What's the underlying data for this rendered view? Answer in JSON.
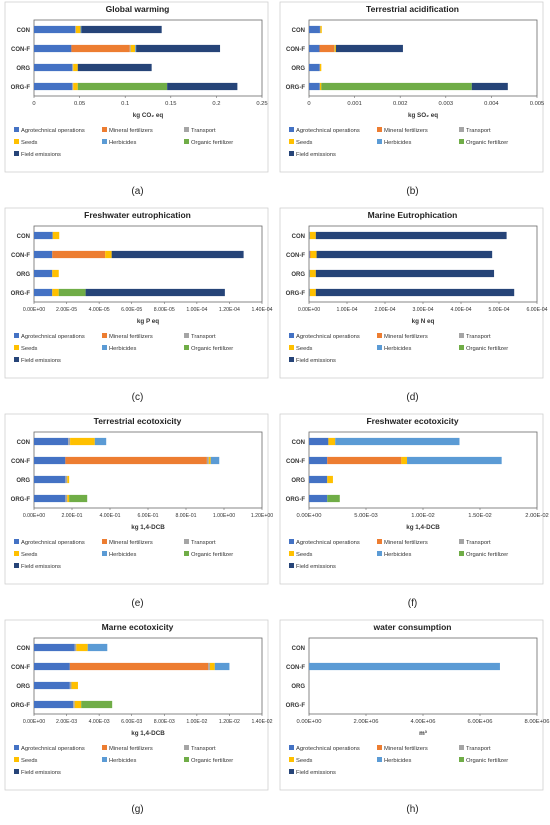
{
  "legend_labels": {
    "agro": "Agrotechnical operations",
    "min": "Mineral fertilizers",
    "trans": "Transport",
    "seeds": "Seeds",
    "herb": "Herbicides",
    "org": "Organic fertilizer",
    "field": "Field emissions"
  },
  "colors": {
    "agro": "#4472C4",
    "min": "#ED7D31",
    "trans": "#A5A5A5",
    "seeds": "#FFC000",
    "herb": "#5B9BD5",
    "org": "#70AD47",
    "field": "#264478"
  },
  "chart_data": [
    {
      "type": "bar",
      "orientation": "horizontal",
      "stacked": true,
      "panel_label": "(a)",
      "title": "Global warming",
      "xlabel": "kg CO₂ eq",
      "categories": [
        "CON",
        "CON-F",
        "ORG",
        "ORG-F"
      ],
      "xlim": [
        0,
        0.25
      ],
      "ticks": [
        "0",
        "0.05",
        "0.1",
        "0.15",
        "0.2",
        "0.25"
      ],
      "series": [
        {
          "key": "agro",
          "name": "Agrotechnical operations",
          "values": [
            0.045,
            0.041,
            0.042,
            0.042
          ]
        },
        {
          "key": "min",
          "name": "Mineral fertilizers",
          "values": [
            0,
            0.064,
            0,
            0
          ]
        },
        {
          "key": "trans",
          "name": "Transport",
          "values": [
            0.001,
            0.001,
            0.001,
            0.001
          ]
        },
        {
          "key": "seeds",
          "name": "Seeds",
          "values": [
            0.005,
            0.005,
            0.005,
            0.005
          ]
        },
        {
          "key": "herb",
          "name": "Herbicides",
          "values": [
            0.001,
            0.001,
            0,
            0
          ]
        },
        {
          "key": "org",
          "name": "Organic fertilizer",
          "values": [
            0,
            0,
            0,
            0.098
          ]
        },
        {
          "key": "field",
          "name": "Field emissions",
          "values": [
            0.088,
            0.092,
            0.081,
            0.077
          ]
        }
      ]
    },
    {
      "type": "bar",
      "orientation": "horizontal",
      "stacked": true,
      "panel_label": "(b)",
      "title": "Terrestrial acidification",
      "xlabel": "kg SO₂ eq",
      "categories": [
        "CON",
        "CON-F",
        "ORG",
        "ORG-F"
      ],
      "xlim": [
        0,
        0.005
      ],
      "ticks": [
        "0",
        "0.001",
        "0.002",
        "0.003",
        "0.004",
        "0.005"
      ],
      "series": [
        {
          "key": "agro",
          "name": "Agrotechnical operations",
          "values": [
            0.00024,
            0.00023,
            0.00023,
            0.00023
          ]
        },
        {
          "key": "min",
          "name": "Mineral fertilizers",
          "values": [
            0,
            0.00032,
            0,
            0
          ]
        },
        {
          "key": "trans",
          "name": "Transport",
          "values": [
            1e-05,
            1e-05,
            1e-05,
            1e-05
          ]
        },
        {
          "key": "seeds",
          "name": "Seeds",
          "values": [
            3e-05,
            3e-05,
            3e-05,
            3e-05
          ]
        },
        {
          "key": "herb",
          "name": "Herbicides",
          "values": [
            0,
            0,
            0,
            0
          ]
        },
        {
          "key": "org",
          "name": "Organic fertilizer",
          "values": [
            0,
            0,
            0,
            0.0033
          ]
        },
        {
          "key": "field",
          "name": "Field emissions",
          "values": [
            0,
            0.00147,
            0,
            0.00079
          ]
        }
      ]
    },
    {
      "type": "bar",
      "orientation": "horizontal",
      "stacked": true,
      "panel_label": "(c)",
      "title": "Freshwater eutrophication",
      "xlabel": "kg P eq",
      "categories": [
        "CON",
        "CON-F",
        "ORG",
        "ORG-F"
      ],
      "xlim": [
        0,
        0.00014
      ],
      "ticks": [
        "0.00E+00",
        "2.00E-05",
        "4.00E-05",
        "6.00E-05",
        "8.00E-05",
        "1.00E-04",
        "1.20E-04",
        "1.40E-04"
      ],
      "series": [
        {
          "key": "agro",
          "name": "Agrotechnical operations",
          "values": [
            1.15e-05,
            1.12e-05,
            1.12e-05,
            1.12e-05
          ]
        },
        {
          "key": "min",
          "name": "Mineral fertilizers",
          "values": [
            0,
            3.25e-05,
            0,
            0
          ]
        },
        {
          "key": "trans",
          "name": "Transport",
          "values": [
            0,
            0,
            0,
            0
          ]
        },
        {
          "key": "seeds",
          "name": "Seeds",
          "values": [
            4e-06,
            4e-06,
            4e-06,
            4e-06
          ]
        },
        {
          "key": "herb",
          "name": "Herbicides",
          "values": [
            0,
            0,
            0,
            0
          ]
        },
        {
          "key": "org",
          "name": "Organic fertilizer",
          "values": [
            0,
            0,
            0,
            1.65e-05
          ]
        },
        {
          "key": "field",
          "name": "Field emissions",
          "values": [
            0,
            8.1e-05,
            0,
            8.55e-05
          ]
        }
      ]
    },
    {
      "type": "bar",
      "orientation": "horizontal",
      "stacked": true,
      "panel_label": "(d)",
      "title": "Marine Eutrophication",
      "xlabel": "kg N eq",
      "categories": [
        "CON",
        "CON-F",
        "ORG",
        "ORG-F"
      ],
      "xlim": [
        0,
        0.0006
      ],
      "ticks": [
        "0.00E+00",
        "1.00E-04",
        "2.00E-04",
        "3.00E-04",
        "4.00E-04",
        "5.00E-04",
        "6.00E-04"
      ],
      "series": [
        {
          "key": "agro",
          "name": "Agrotechnical operations",
          "values": [
            2e-06,
            2e-06,
            2e-06,
            2e-06
          ]
        },
        {
          "key": "min",
          "name": "Mineral fertilizers",
          "values": [
            0,
            2e-06,
            0,
            0
          ]
        },
        {
          "key": "trans",
          "name": "Transport",
          "values": [
            0,
            0,
            0,
            0
          ]
        },
        {
          "key": "seeds",
          "name": "Seeds",
          "values": [
            1.6e-05,
            1.6e-05,
            1.6e-05,
            1.6e-05
          ]
        },
        {
          "key": "herb",
          "name": "Herbicides",
          "values": [
            0,
            0,
            0,
            0
          ]
        },
        {
          "key": "org",
          "name": "Organic fertilizer",
          "values": [
            0,
            0,
            0,
            0
          ]
        },
        {
          "key": "field",
          "name": "Field emissions",
          "values": [
            0.000502,
            0.000462,
            0.000469,
            0.000522
          ]
        }
      ]
    },
    {
      "type": "bar",
      "orientation": "horizontal",
      "stacked": true,
      "panel_label": "(e)",
      "title": "Terrestrial ecotoxicity",
      "xlabel": "kg 1,4-DCB",
      "categories": [
        "CON",
        "CON-F",
        "ORG",
        "ORG-F"
      ],
      "xlim": [
        0,
        1.2
      ],
      "ticks": [
        "0.00E+00",
        "2.00E-01",
        "4.00E-01",
        "6.00E-01",
        "8.00E-01",
        "1.00E+00",
        "1.20E+00"
      ],
      "series": [
        {
          "key": "agro",
          "name": "Agrotechnical operations",
          "values": [
            0.18,
            0.165,
            0.165,
            0.165
          ]
        },
        {
          "key": "min",
          "name": "Mineral fertilizers",
          "values": [
            0,
            0.745,
            0,
            0
          ]
        },
        {
          "key": "trans",
          "name": "Transport",
          "values": [
            0.01,
            0.01,
            0.01,
            0.01
          ]
        },
        {
          "key": "seeds",
          "name": "Seeds",
          "values": [
            0.13,
            0.01,
            0.01,
            0.01
          ]
        },
        {
          "key": "herb",
          "name": "Herbicides",
          "values": [
            0.06,
            0.045,
            0,
            0
          ]
        },
        {
          "key": "org",
          "name": "Organic fertilizer",
          "values": [
            0,
            0,
            0,
            0.095
          ]
        },
        {
          "key": "field",
          "name": "Field emissions",
          "values": [
            0,
            0,
            0,
            0
          ]
        }
      ]
    },
    {
      "type": "bar",
      "orientation": "horizontal",
      "stacked": true,
      "panel_label": "(f)",
      "title": "Freshwater ecotoxicity",
      "xlabel": "kg 1,4-DCB",
      "categories": [
        "CON",
        "CON-F",
        "ORG",
        "ORG-F"
      ],
      "xlim": [
        0,
        0.02
      ],
      "ticks": [
        "0.00E+00",
        "5.00E-03",
        "1.00E-02",
        "1.50E-02",
        "2.00E-02"
      ],
      "series": [
        {
          "key": "agro",
          "name": "Agrotechnical operations",
          "values": [
            0.0017,
            0.0016,
            0.0016,
            0.0016
          ]
        },
        {
          "key": "min",
          "name": "Mineral fertilizers",
          "values": [
            0,
            0.0065,
            0,
            0
          ]
        },
        {
          "key": "trans",
          "name": "Transport",
          "values": [
            0,
            0,
            0,
            0
          ]
        },
        {
          "key": "seeds",
          "name": "Seeds",
          "values": [
            0.0006,
            0.0005,
            0.0005,
            0
          ]
        },
        {
          "key": "herb",
          "name": "Herbicides",
          "values": [
            0.0109,
            0.0083,
            0,
            0
          ]
        },
        {
          "key": "org",
          "name": "Organic fertilizer",
          "values": [
            0,
            0,
            0,
            0.0011
          ]
        },
        {
          "key": "field",
          "name": "Field emissions",
          "values": [
            0,
            0,
            0,
            0
          ]
        }
      ]
    },
    {
      "type": "bar",
      "orientation": "horizontal",
      "stacked": true,
      "panel_label": "(g)",
      "title": "Marne ecotoxicity",
      "xlabel": "kg 1,4-DCB",
      "categories": [
        "CON",
        "CON-F",
        "ORG",
        "ORG-F"
      ],
      "xlim": [
        0,
        0.014
      ],
      "ticks": [
        "0.00E+00",
        "2.00E-03",
        "4.00E-03",
        "6.00E-03",
        "8.00E-03",
        "1.00E-02",
        "1.20E-02",
        "1.40E-02"
      ],
      "series": [
        {
          "key": "agro",
          "name": "Agrotechnical operations",
          "values": [
            0.0025,
            0.0022,
            0.0022,
            0.0024
          ]
        },
        {
          "key": "min",
          "name": "Mineral fertilizers",
          "values": [
            0,
            0.0085,
            0,
            0
          ]
        },
        {
          "key": "trans",
          "name": "Transport",
          "values": [
            0.0001,
            0.0001,
            0.0001,
            0.0001
          ]
        },
        {
          "key": "seeds",
          "name": "Seeds",
          "values": [
            0.0007,
            0.0003,
            0.0004,
            0.0004
          ]
        },
        {
          "key": "herb",
          "name": "Herbicides",
          "values": [
            0.0012,
            0.0009,
            0,
            0
          ]
        },
        {
          "key": "org",
          "name": "Organic fertilizer",
          "values": [
            0,
            0,
            0,
            0.0019
          ]
        },
        {
          "key": "field",
          "name": "Field emissions",
          "values": [
            0,
            0,
            0,
            0
          ]
        }
      ]
    },
    {
      "type": "bar",
      "orientation": "horizontal",
      "stacked": true,
      "panel_label": "(h)",
      "title": "water consumption",
      "xlabel": "m³",
      "categories": [
        "CON",
        "CON-F",
        "ORG",
        "ORG-F"
      ],
      "xlim": [
        0,
        8000000
      ],
      "ticks": [
        "0.00E+00",
        "2.00E+06",
        "4.00E+06",
        "6.00E+06",
        "8.00E+06"
      ],
      "series": [
        {
          "key": "agro",
          "name": "Agrotechnical operations",
          "values": [
            0,
            0,
            0,
            0
          ]
        },
        {
          "key": "min",
          "name": "Mineral fertilizers",
          "values": [
            0,
            0,
            0,
            0
          ]
        },
        {
          "key": "trans",
          "name": "Transport",
          "values": [
            0,
            0,
            0,
            0
          ]
        },
        {
          "key": "seeds",
          "name": "Seeds",
          "values": [
            0,
            0,
            0,
            0
          ]
        },
        {
          "key": "herb",
          "name": "Herbicides",
          "values": [
            0,
            6700000,
            0,
            0
          ]
        },
        {
          "key": "org",
          "name": "Organic fertilizer",
          "values": [
            0,
            0,
            0,
            0
          ]
        },
        {
          "key": "field",
          "name": "Field emissions",
          "values": [
            0,
            0,
            0,
            0
          ]
        }
      ]
    }
  ]
}
